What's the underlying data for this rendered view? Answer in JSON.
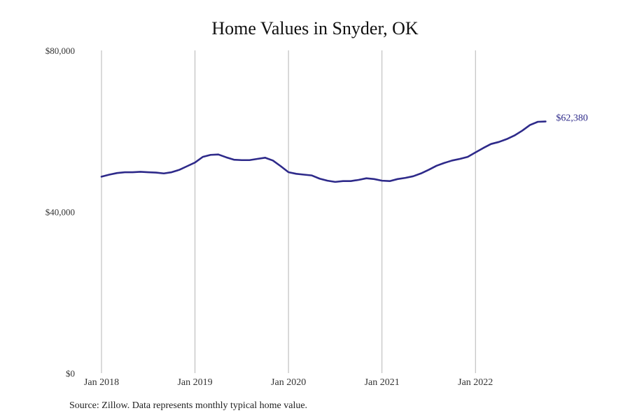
{
  "title": "Home Values in Snyder, OK",
  "source": "Source: Zillow. Data represents monthly typical home value.",
  "line_color": "#2e2a8a",
  "chart_data": {
    "type": "line",
    "title": "Home Values in Snyder, OK",
    "xlabel": "",
    "ylabel": "",
    "ylim": [
      0,
      80000
    ],
    "x_ticks": [
      "Jan 2018",
      "Jan 2019",
      "Jan 2020",
      "Jan 2021",
      "Jan 2022"
    ],
    "y_ticks": [
      "$0",
      "$40,000",
      "$80,000"
    ],
    "y_tick_values": [
      0,
      40000,
      80000
    ],
    "grid": "vertical",
    "end_label": "$62,380",
    "series": [
      {
        "x": [
          "2018-01",
          "2018-02",
          "2018-03",
          "2018-04",
          "2018-05",
          "2018-06",
          "2018-07",
          "2018-08",
          "2018-09",
          "2018-10",
          "2018-11",
          "2018-12",
          "2019-01",
          "2019-02",
          "2019-03",
          "2019-04",
          "2019-05",
          "2019-06",
          "2019-07",
          "2019-08",
          "2019-09",
          "2019-10",
          "2019-11",
          "2019-12",
          "2020-01",
          "2020-02",
          "2020-03",
          "2020-04",
          "2020-05",
          "2020-06",
          "2020-07",
          "2020-08",
          "2020-09",
          "2020-10",
          "2020-11",
          "2020-12",
          "2021-01",
          "2021-02",
          "2021-03",
          "2021-04",
          "2021-05",
          "2021-06",
          "2021-07",
          "2021-08",
          "2021-09",
          "2021-10",
          "2021-11",
          "2021-12",
          "2022-01",
          "2022-02",
          "2022-03",
          "2022-04",
          "2022-05",
          "2022-06",
          "2022-07",
          "2022-08",
          "2022-09",
          "2022-10"
        ],
        "values": [
          48700,
          49200,
          49600,
          49800,
          49800,
          49900,
          49800,
          49700,
          49500,
          49800,
          50400,
          51300,
          52200,
          53600,
          54100,
          54200,
          53500,
          52900,
          52800,
          52800,
          53100,
          53400,
          52700,
          51300,
          49800,
          49400,
          49200,
          49000,
          48200,
          47700,
          47400,
          47600,
          47600,
          47900,
          48300,
          48100,
          47700,
          47600,
          48100,
          48400,
          48800,
          49500,
          50400,
          51400,
          52100,
          52700,
          53100,
          53600,
          54700,
          55800,
          56800,
          57300,
          58000,
          58900,
          60100,
          61500,
          62300,
          62380
        ]
      }
    ]
  }
}
